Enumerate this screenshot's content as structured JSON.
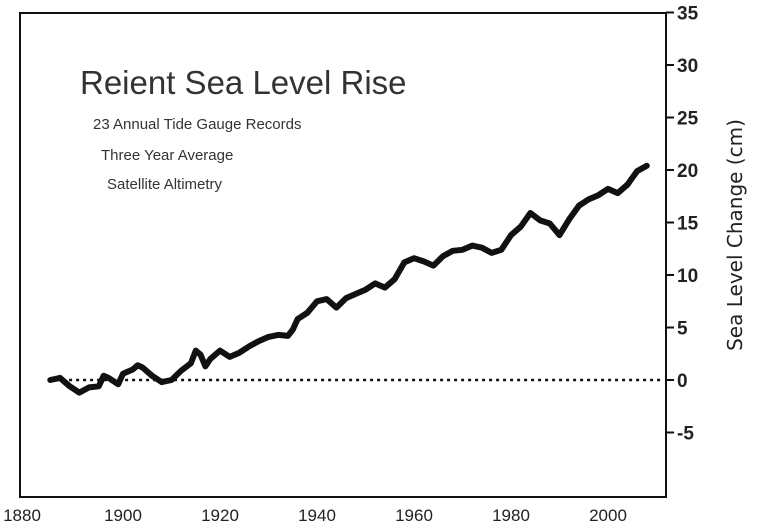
{
  "chart_data": {
    "type": "line",
    "title": "Reient Sea Level Rise",
    "legend": [
      "23 Annual Tide Gauge Records",
      "Three Year Average",
      "Satellite Altimetry"
    ],
    "ylabel": "Sea Level Change (cm)",
    "xlabel": "",
    "xlim": [
      1880,
      2010
    ],
    "ylim": [
      -10,
      35
    ],
    "x_ticks": [
      "1880",
      "1900",
      "1920",
      "1940",
      "1960",
      "1980",
      "2000"
    ],
    "y_ticks": [
      "35",
      "30",
      "25",
      "20",
      "15",
      "10",
      "5",
      "0",
      "-5"
    ],
    "baseline": 0,
    "grid": false,
    "series": [
      {
        "x": [
          1885,
          1887,
          1889,
          1891,
          1893,
          1895,
          1896,
          1897,
          1899,
          1900,
          1902,
          1903,
          1904,
          1906,
          1908,
          1910,
          1912,
          1914,
          1915,
          1916,
          1917,
          1918,
          1920,
          1922,
          1924,
          1926,
          1928,
          1930,
          1932,
          1934,
          1935,
          1936,
          1938,
          1940,
          1942,
          1944,
          1946,
          1948,
          1950,
          1952,
          1954,
          1956,
          1958,
          1960,
          1962,
          1964,
          1966,
          1968,
          1970,
          1972,
          1974,
          1976,
          1978,
          1980,
          1982,
          1984,
          1986,
          1988,
          1990,
          1992,
          1994,
          1996,
          1998,
          2000,
          2002,
          2004,
          2006,
          2008
        ],
        "y": [
          0.0,
          0.2,
          -0.6,
          -1.2,
          -0.7,
          -0.6,
          0.4,
          0.2,
          -0.4,
          0.6,
          1.0,
          1.4,
          1.2,
          0.4,
          -0.2,
          0.0,
          0.9,
          1.6,
          2.8,
          2.4,
          1.3,
          2.0,
          2.8,
          2.2,
          2.6,
          3.2,
          3.7,
          4.1,
          4.3,
          4.2,
          4.8,
          5.8,
          6.4,
          7.5,
          7.7,
          6.9,
          7.8,
          8.2,
          8.6,
          9.2,
          8.8,
          9.6,
          11.2,
          11.6,
          11.3,
          10.9,
          11.8,
          12.3,
          12.4,
          12.8,
          12.6,
          12.1,
          12.4,
          13.8,
          14.6,
          15.9,
          15.2,
          14.9,
          13.8,
          15.3,
          16.6,
          17.2,
          17.6,
          18.2,
          17.8,
          18.6,
          19.9,
          20.4
        ]
      }
    ]
  }
}
